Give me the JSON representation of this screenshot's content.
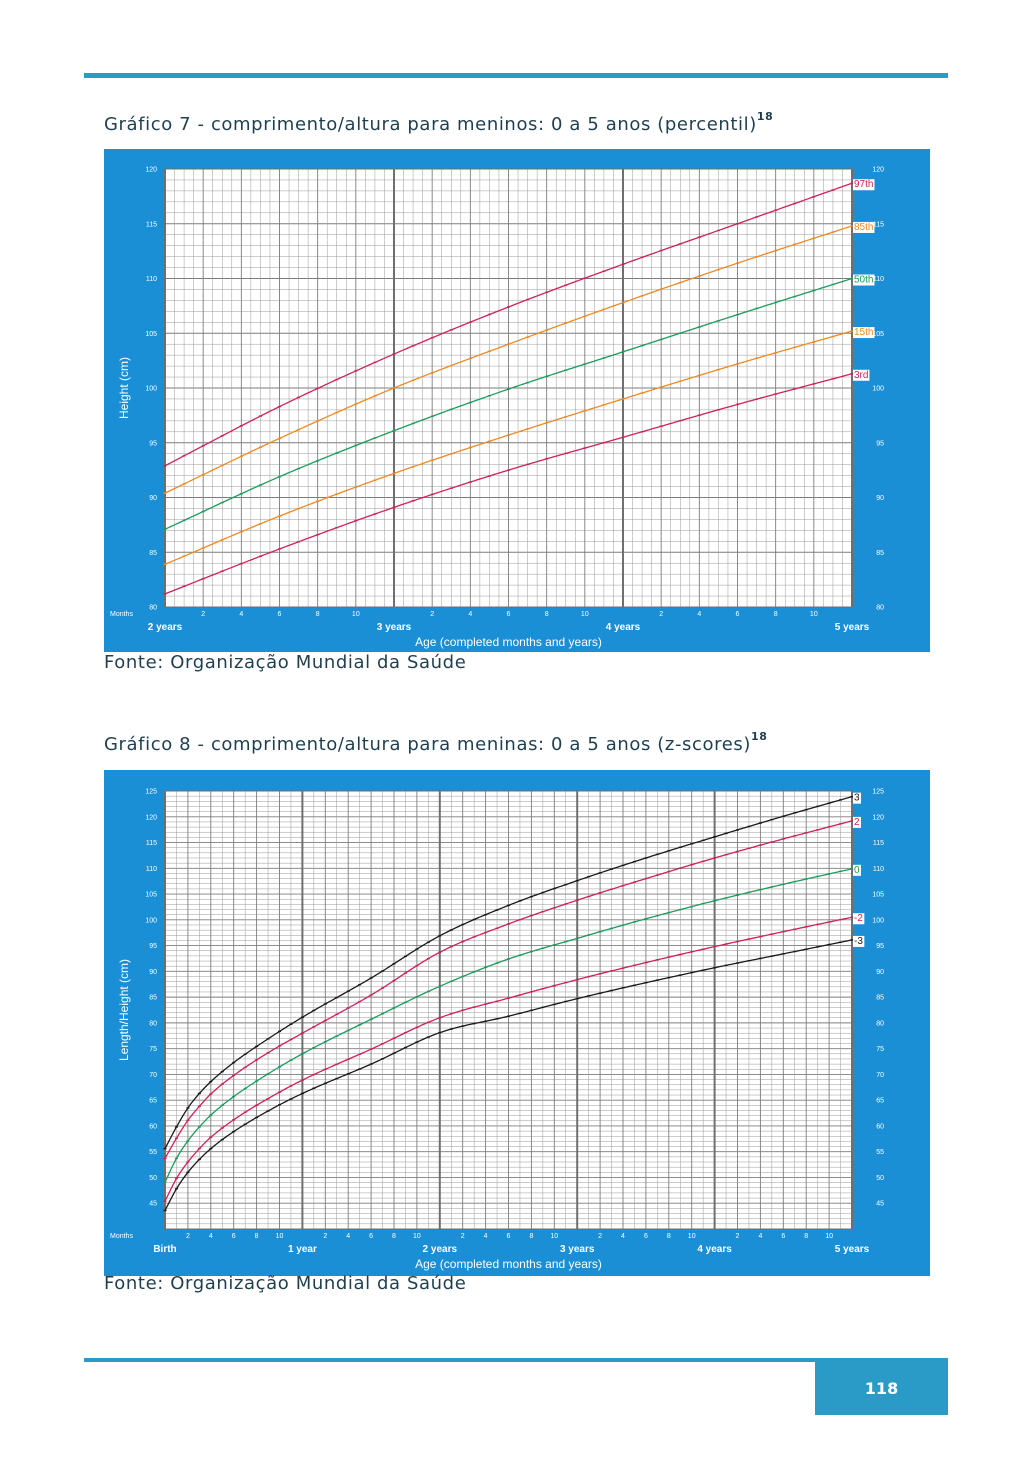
{
  "page": {
    "number": "118",
    "accent": "#2a9bc6",
    "chart_bg": "#1a8fd6"
  },
  "figure7": {
    "caption": "Gráfico 7 - comprimento/altura para meninos: 0 a 5 anos (percentil)",
    "caption_ref": "18",
    "source": "Fonte: Organização Mundial da Saúde"
  },
  "figure8": {
    "caption": "Gráfico 8 - comprimento/altura para meninas: 0 a 5 anos (z-scores)",
    "caption_ref": "18",
    "source": "Fonte: Organização Mundial da Saúde"
  },
  "chart_data": [
    {
      "type": "line",
      "title": "",
      "xlabel": "Age (completed months and years)",
      "ylabel": "Height (cm)",
      "x_unit_label": "Months",
      "xlim": [
        24,
        60
      ],
      "ylim": [
        80,
        120
      ],
      "y_ticks": [
        80,
        85,
        90,
        95,
        100,
        105,
        110,
        115,
        120
      ],
      "x_month_ticks": [
        "2",
        "4",
        "6",
        "8",
        "10"
      ],
      "year_labels": [
        {
          "x": 24,
          "label": "2 years"
        },
        {
          "x": 36,
          "label": "3 years"
        },
        {
          "x": 48,
          "label": "4 years"
        },
        {
          "x": 60,
          "label": "5 years"
        }
      ],
      "grid": true,
      "x": [
        24,
        30,
        36,
        42,
        48,
        54,
        60
      ],
      "series": [
        {
          "name": "97th",
          "color": "#d0205a",
          "values": [
            92.9,
            98.3,
            103.1,
            107.4,
            111.3,
            115.0,
            118.7
          ]
        },
        {
          "name": "85th",
          "color": "#f08a20",
          "values": [
            90.4,
            95.4,
            100.0,
            104.0,
            107.8,
            111.4,
            114.8
          ]
        },
        {
          "name": "50th",
          "color": "#1a9c5a",
          "values": [
            87.1,
            91.9,
            96.1,
            99.9,
            103.3,
            106.7,
            110.0
          ]
        },
        {
          "name": "15th",
          "color": "#f08a20",
          "values": [
            83.9,
            88.3,
            92.2,
            95.7,
            99.0,
            102.2,
            105.2
          ]
        },
        {
          "name": "3rd",
          "color": "#d0205a",
          "values": [
            81.2,
            85.3,
            89.1,
            92.5,
            95.5,
            98.5,
            101.3
          ]
        }
      ]
    },
    {
      "type": "line",
      "title": "",
      "xlabel": "Age (completed months and years)",
      "ylabel": "Length/Height (cm)",
      "x_unit_label": "Months",
      "xlim": [
        0,
        60
      ],
      "ylim": [
        40,
        125
      ],
      "y_ticks": [
        45,
        50,
        55,
        60,
        65,
        70,
        75,
        80,
        85,
        90,
        95,
        100,
        105,
        110,
        115,
        120,
        125
      ],
      "x_month_ticks": [
        "2",
        "4",
        "6",
        "8",
        "10"
      ],
      "year_labels": [
        {
          "x": 0,
          "label": "Birth"
        },
        {
          "x": 12,
          "label": "1 year"
        },
        {
          "x": 24,
          "label": "2 years"
        },
        {
          "x": 36,
          "label": "3 years"
        },
        {
          "x": 48,
          "label": "4 years"
        },
        {
          "x": 60,
          "label": "5 years"
        }
      ],
      "grid": true,
      "x": [
        0,
        1,
        2,
        3,
        4,
        6,
        9,
        12,
        18,
        24,
        30,
        36,
        42,
        48,
        54,
        60
      ],
      "series": [
        {
          "name": "3",
          "color": "#1a1a1a",
          "values": [
            55.6,
            59.8,
            63.5,
            66.3,
            68.6,
            72.3,
            76.9,
            81.1,
            88.7,
            96.9,
            102.8,
            107.6,
            112.0,
            116.1,
            120.1,
            123.9
          ]
        },
        {
          "name": "2",
          "color": "#d0205a",
          "values": [
            53.7,
            57.6,
            61.1,
            63.8,
            66.2,
            69.8,
            74.2,
            78.0,
            85.4,
            93.7,
            99.2,
            103.8,
            108.0,
            112.0,
            115.7,
            119.2
          ]
        },
        {
          "name": "0",
          "color": "#1a9c5a",
          "values": [
            49.1,
            53.7,
            57.1,
            59.8,
            62.1,
            65.7,
            70.1,
            74.0,
            80.7,
            87.1,
            92.4,
            96.4,
            100.2,
            103.7,
            106.9,
            109.9
          ]
        },
        {
          "name": "-2",
          "color": "#d0205a",
          "values": [
            45.4,
            49.8,
            53.0,
            55.6,
            57.8,
            61.2,
            65.3,
            68.9,
            74.9,
            81.0,
            84.8,
            88.4,
            91.7,
            94.8,
            97.7,
            100.5
          ]
        },
        {
          "name": "-3",
          "color": "#1a1a1a",
          "values": [
            43.6,
            47.8,
            51.0,
            53.5,
            55.6,
            58.9,
            62.9,
            66.3,
            72.0,
            78.1,
            81.3,
            84.7,
            87.8,
            90.7,
            93.4,
            96.1
          ]
        }
      ]
    }
  ]
}
